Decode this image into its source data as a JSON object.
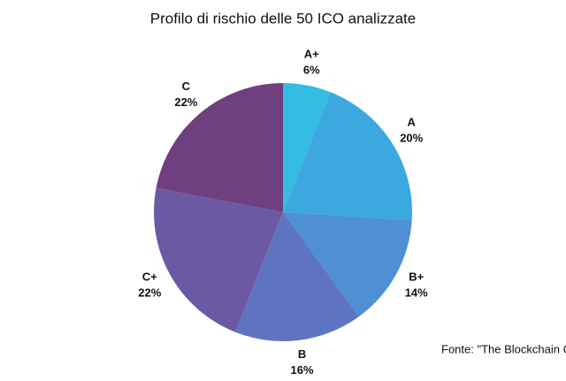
{
  "chart_data": {
    "type": "pie",
    "title": "Profilo di rischio delle 50 ICO analizzate",
    "categories": [
      "A+",
      "A",
      "B+",
      "B",
      "C+",
      "C"
    ],
    "values": [
      6,
      20,
      14,
      16,
      22,
      22
    ],
    "value_labels": [
      "6%",
      "20%",
      "14%",
      "16%",
      "22%",
      "22%"
    ],
    "colors": [
      "#33bde3",
      "#3ba8df",
      "#4f8fd4",
      "#5f74c0",
      "#6b5aa3",
      "#6f3f80"
    ],
    "source": "Fonte: \"The Blockchain C"
  }
}
